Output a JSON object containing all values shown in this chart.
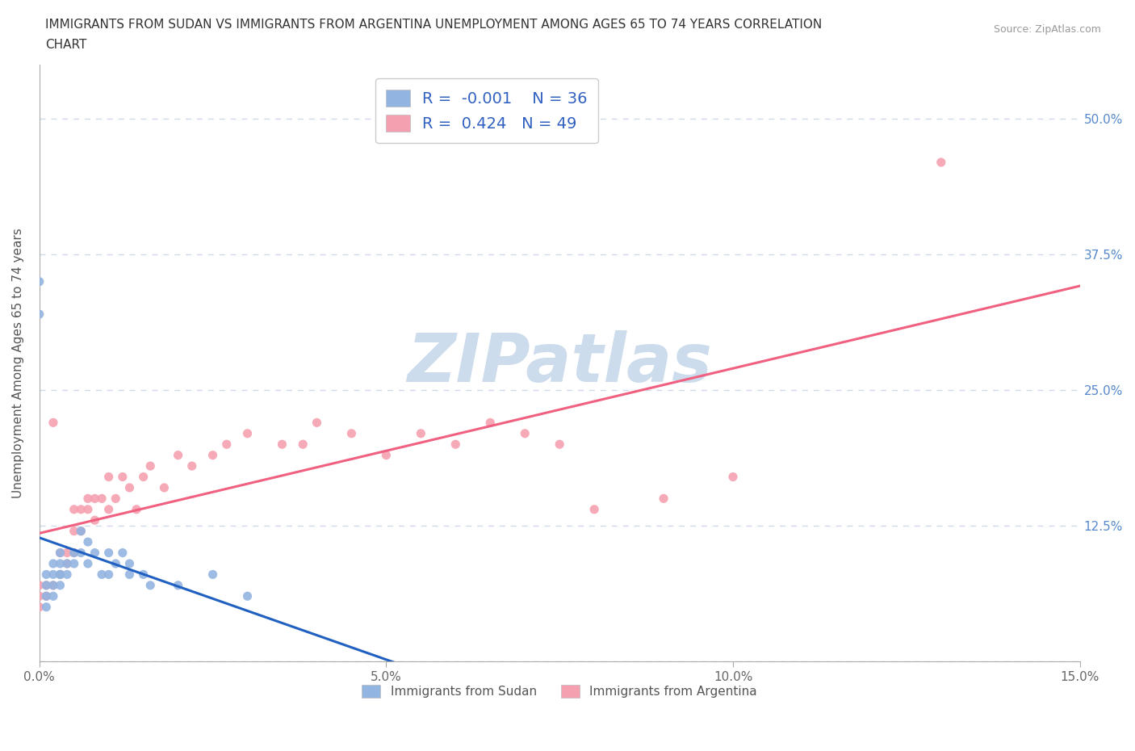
{
  "title_line1": "IMMIGRANTS FROM SUDAN VS IMMIGRANTS FROM ARGENTINA UNEMPLOYMENT AMONG AGES 65 TO 74 YEARS CORRELATION",
  "title_line2": "CHART",
  "source": "Source: ZipAtlas.com",
  "ylabel": "Unemployment Among Ages 65 to 74 years",
  "xlim": [
    0.0,
    0.15
  ],
  "ylim": [
    0.0,
    0.55
  ],
  "xticks": [
    0.0,
    0.05,
    0.1,
    0.15
  ],
  "xtick_labels": [
    "0.0%",
    "5.0%",
    "10.0%",
    "15.0%"
  ],
  "ytick_labels": [
    "",
    "12.5%",
    "25.0%",
    "37.5%",
    "50.0%"
  ],
  "yticks": [
    0.0,
    0.125,
    0.25,
    0.375,
    0.5
  ],
  "sudan_R": -0.001,
  "sudan_N": 36,
  "argentina_R": 0.424,
  "argentina_N": 49,
  "sudan_color": "#92b4e0",
  "argentina_color": "#f5a0b0",
  "sudan_line_color": "#2060c0",
  "argentina_line_color": "#f06080",
  "watermark": "ZIPatlas",
  "watermark_color": "#ccdcec",
  "background_color": "#ffffff",
  "grid_color": "#d0d8ec",
  "legend_R_color": "#3060c0",
  "sudan_scatter_x": [
    0.0,
    0.0,
    0.001,
    0.001,
    0.001,
    0.001,
    0.002,
    0.002,
    0.002,
    0.002,
    0.003,
    0.003,
    0.003,
    0.003,
    0.003,
    0.004,
    0.004,
    0.005,
    0.005,
    0.006,
    0.006,
    0.007,
    0.007,
    0.008,
    0.009,
    0.01,
    0.01,
    0.011,
    0.012,
    0.013,
    0.013,
    0.015,
    0.016,
    0.02,
    0.025,
    0.03
  ],
  "sudan_scatter_y": [
    0.32,
    0.35,
    0.05,
    0.06,
    0.07,
    0.08,
    0.06,
    0.07,
    0.08,
    0.09,
    0.07,
    0.08,
    0.08,
    0.09,
    0.1,
    0.08,
    0.09,
    0.09,
    0.1,
    0.1,
    0.12,
    0.09,
    0.11,
    0.1,
    0.08,
    0.08,
    0.1,
    0.09,
    0.1,
    0.08,
    0.09,
    0.08,
    0.07,
    0.07,
    0.08,
    0.06
  ],
  "argentina_scatter_x": [
    0.0,
    0.0,
    0.0,
    0.001,
    0.001,
    0.002,
    0.002,
    0.003,
    0.003,
    0.004,
    0.004,
    0.005,
    0.005,
    0.005,
    0.006,
    0.006,
    0.007,
    0.007,
    0.008,
    0.008,
    0.009,
    0.01,
    0.01,
    0.011,
    0.012,
    0.013,
    0.014,
    0.015,
    0.016,
    0.018,
    0.02,
    0.022,
    0.025,
    0.027,
    0.03,
    0.035,
    0.038,
    0.04,
    0.045,
    0.05,
    0.055,
    0.06,
    0.065,
    0.07,
    0.075,
    0.08,
    0.09,
    0.1,
    0.13
  ],
  "argentina_scatter_y": [
    0.05,
    0.06,
    0.07,
    0.06,
    0.07,
    0.07,
    0.22,
    0.08,
    0.1,
    0.09,
    0.1,
    0.1,
    0.12,
    0.14,
    0.12,
    0.14,
    0.14,
    0.15,
    0.13,
    0.15,
    0.15,
    0.14,
    0.17,
    0.15,
    0.17,
    0.16,
    0.14,
    0.17,
    0.18,
    0.16,
    0.19,
    0.18,
    0.19,
    0.2,
    0.21,
    0.2,
    0.2,
    0.22,
    0.21,
    0.19,
    0.21,
    0.2,
    0.22,
    0.21,
    0.2,
    0.14,
    0.15,
    0.17,
    0.46
  ]
}
